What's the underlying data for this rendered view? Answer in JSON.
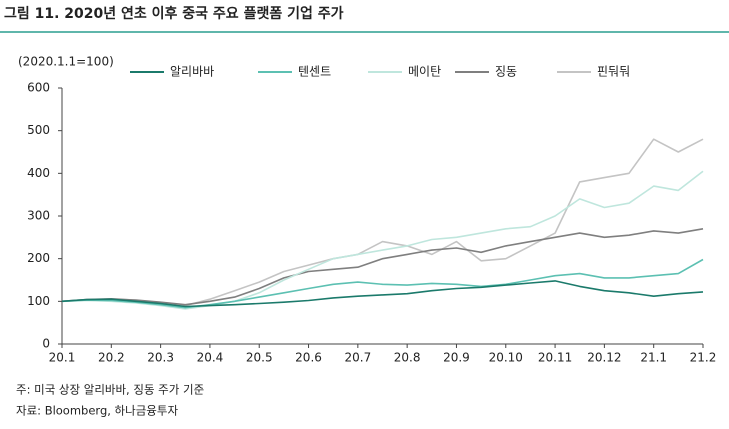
{
  "chart_data": {
    "type": "line",
    "title": "그림 11. 2020년 연초 이후 중국 주요 플랫폼 기업 주가",
    "y_label": "(2020.1.1=100)",
    "notes": [
      "주: 미국 상장 알리바바, 징동 주가 기준",
      "자료: Bloomberg, 하나금융투자"
    ],
    "x": [
      0,
      0.5,
      1,
      1.5,
      2,
      2.5,
      3,
      3.5,
      4,
      4.5,
      5,
      5.5,
      6,
      6.5,
      7,
      7.5,
      8,
      8.5,
      9,
      9.5,
      10,
      10.5,
      11,
      11.5,
      12,
      12.5,
      13
    ],
    "xlim": [
      0,
      13
    ],
    "xticks": [
      {
        "value": 0,
        "label": "20.1"
      },
      {
        "value": 1,
        "label": "20.2"
      },
      {
        "value": 2,
        "label": "20.3"
      },
      {
        "value": 3,
        "label": "20.4"
      },
      {
        "value": 4,
        "label": "20.5"
      },
      {
        "value": 5,
        "label": "20.6"
      },
      {
        "value": 6,
        "label": "20.7"
      },
      {
        "value": 7,
        "label": "20.8"
      },
      {
        "value": 8,
        "label": "20.9"
      },
      {
        "value": 9,
        "label": "20.10"
      },
      {
        "value": 10,
        "label": "20.11"
      },
      {
        "value": 11,
        "label": "20.12"
      },
      {
        "value": 12,
        "label": "21.1"
      },
      {
        "value": 13,
        "label": "21.2"
      }
    ],
    "ylim": [
      0,
      600
    ],
    "yticks": [
      0,
      100,
      200,
      300,
      400,
      500,
      600
    ],
    "series": [
      {
        "name": "알리바바",
        "color": "#1b7a6b",
        "values": [
          100,
          104,
          105,
          100,
          95,
          88,
          90,
          92,
          95,
          98,
          102,
          108,
          112,
          115,
          118,
          125,
          130,
          133,
          138,
          143,
          148,
          135,
          125,
          120,
          112,
          118,
          122
        ]
      },
      {
        "name": "텐센트",
        "color": "#5cc0b2",
        "values": [
          100,
          103,
          102,
          98,
          92,
          85,
          92,
          100,
          110,
          120,
          130,
          140,
          145,
          140,
          138,
          142,
          140,
          135,
          140,
          150,
          160,
          165,
          155,
          155,
          160,
          165,
          198
        ]
      },
      {
        "name": "메이탄",
        "color": "#bfe6dd",
        "values": [
          100,
          102,
          100,
          96,
          90,
          82,
          90,
          100,
          120,
          150,
          175,
          200,
          210,
          220,
          230,
          245,
          250,
          260,
          270,
          275,
          300,
          340,
          320,
          330,
          370,
          360,
          405
        ]
      },
      {
        "name": "징동",
        "color": "#7f7f7f",
        "values": [
          100,
          104,
          106,
          103,
          98,
          92,
          100,
          110,
          130,
          155,
          170,
          175,
          180,
          200,
          210,
          220,
          225,
          215,
          230,
          240,
          250,
          260,
          250,
          255,
          265,
          260,
          270
        ]
      },
      {
        "name": "핀둬둬",
        "color": "#c4c4c4",
        "values": [
          100,
          103,
          104,
          100,
          95,
          90,
          105,
          125,
          145,
          170,
          185,
          200,
          210,
          240,
          230,
          210,
          240,
          195,
          200,
          230,
          260,
          380,
          390,
          400,
          480,
          450,
          480
        ]
      }
    ]
  }
}
